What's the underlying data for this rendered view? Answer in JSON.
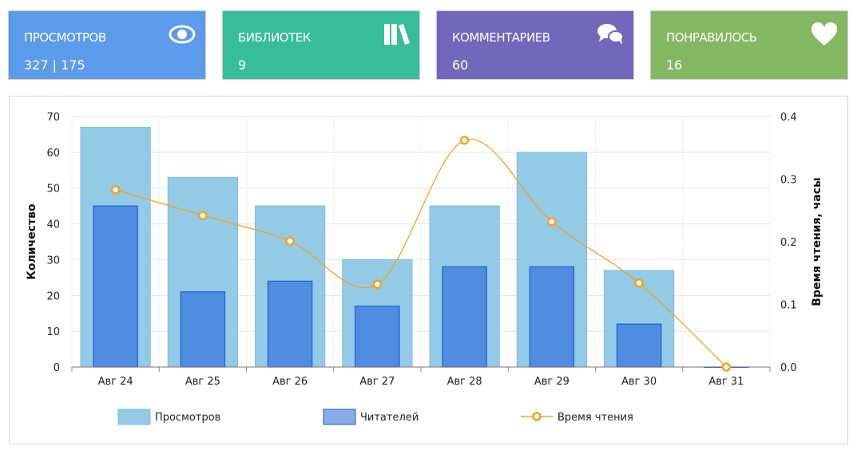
{
  "cards": [
    {
      "label": "ПРОСМОТРОВ",
      "value": "327 | 175",
      "color": "#5b9bea",
      "icon": "eye-icon"
    },
    {
      "label": "БИБЛИОТЕК",
      "value": "9",
      "color": "#38bd9b",
      "icon": "books-icon"
    },
    {
      "label": "КОММЕНТАРИЕВ",
      "value": "60",
      "color": "#7367bb",
      "icon": "comments-icon"
    },
    {
      "label": "ПОНРАВИЛОСЬ",
      "value": "16",
      "color": "#84b762",
      "icon": "heart-icon"
    }
  ],
  "chart_data": {
    "type": "bar",
    "categories": [
      "Авг 24",
      "Авг 25",
      "Авг 26",
      "Авг 27",
      "Авг 28",
      "Авг 29",
      "Авг 30",
      "Авг 31"
    ],
    "series": [
      {
        "name": "Просмотров",
        "type": "bar",
        "axis": "left",
        "color": "#93cae6",
        "values": [
          67,
          53,
          45,
          30,
          45,
          60,
          27,
          0
        ]
      },
      {
        "name": "Читателей",
        "type": "bar",
        "axis": "left",
        "color": "#508de0",
        "values": [
          45,
          21,
          24,
          17,
          28,
          28,
          12,
          0
        ]
      },
      {
        "name": "Время чтения",
        "type": "line",
        "axis": "right",
        "color": "#f7a21b",
        "values": [
          0.283,
          0.242,
          0.201,
          0.132,
          0.362,
          0.232,
          0.134,
          0
        ]
      }
    ],
    "ylabel": "Количество",
    "y2label": "Время чтения, часы",
    "ylim": [
      0,
      70
    ],
    "y2lim": [
      0,
      0.4
    ],
    "yticks": [
      "0",
      "10",
      "20",
      "30",
      "40",
      "50",
      "60",
      "70"
    ],
    "y2ticks": [
      "0.0",
      "0.1",
      "0.2",
      "0.3",
      "0.4"
    ],
    "legend": "bottom",
    "grid": true
  }
}
